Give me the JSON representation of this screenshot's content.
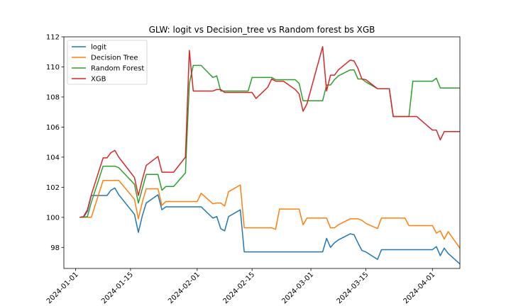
{
  "chart_data": {
    "type": "line",
    "title": "GLW: logit vs Decision_tree vs Random forest bs XGB",
    "xlabel": "",
    "ylabel": "",
    "ylim": [
      96.6,
      112.0
    ],
    "yticks": [
      98,
      100,
      102,
      104,
      106,
      108,
      110,
      112
    ],
    "xlim": [
      "2023-12-29",
      "2024-04-08"
    ],
    "xticks": [
      "2024-01-01",
      "2024-01-15",
      "2024-02-01",
      "2024-02-15",
      "2024-03-01",
      "2024-03-15",
      "2024-04-01"
    ],
    "grid": false,
    "legend_position": "top-left",
    "series": [
      {
        "name": "logit",
        "color": "#1f77b4",
        "points": [
          [
            "2024-01-02",
            100.0
          ],
          [
            "2024-01-03",
            100.0
          ],
          [
            "2024-01-04",
            100.4
          ],
          [
            "2024-01-05",
            101.45
          ],
          [
            "2024-01-08",
            101.45
          ],
          [
            "2024-01-09",
            101.45
          ],
          [
            "2024-01-10",
            101.8
          ],
          [
            "2024-01-11",
            101.95
          ],
          [
            "2024-01-12",
            101.5
          ],
          [
            "2024-01-16",
            100.2
          ],
          [
            "2024-01-17",
            99.0
          ],
          [
            "2024-01-18",
            100.1
          ],
          [
            "2024-01-19",
            100.95
          ],
          [
            "2024-01-22",
            101.5
          ],
          [
            "2024-01-23",
            100.5
          ],
          [
            "2024-01-24",
            100.7
          ],
          [
            "2024-01-25",
            100.7
          ],
          [
            "2024-01-26",
            100.7
          ],
          [
            "2024-01-29",
            100.7
          ],
          [
            "2024-01-30",
            100.7
          ],
          [
            "2024-01-31",
            100.7
          ],
          [
            "2024-02-01",
            100.7
          ],
          [
            "2024-02-02",
            100.7
          ],
          [
            "2024-02-05",
            99.95
          ],
          [
            "2024-02-06",
            100.05
          ],
          [
            "2024-02-07",
            99.25
          ],
          [
            "2024-02-08",
            99.1
          ],
          [
            "2024-02-09",
            100.05
          ],
          [
            "2024-02-12",
            100.5
          ],
          [
            "2024-02-13",
            97.7
          ],
          [
            "2024-02-14",
            97.7
          ],
          [
            "2024-02-15",
            97.7
          ],
          [
            "2024-02-16",
            97.7
          ],
          [
            "2024-03-01",
            97.7
          ],
          [
            "2024-03-04",
            97.7
          ],
          [
            "2024-03-05",
            98.6
          ],
          [
            "2024-03-06",
            98.0
          ],
          [
            "2024-03-07",
            98.3
          ],
          [
            "2024-03-08",
            98.5
          ],
          [
            "2024-03-11",
            98.9
          ],
          [
            "2024-03-12",
            98.85
          ],
          [
            "2024-03-13",
            98.3
          ],
          [
            "2024-03-14",
            97.8
          ],
          [
            "2024-03-15",
            97.7
          ],
          [
            "2024-03-18",
            97.2
          ],
          [
            "2024-03-19",
            97.85
          ],
          [
            "2024-03-20",
            97.85
          ],
          [
            "2024-03-21",
            97.85
          ],
          [
            "2024-04-01",
            97.85
          ],
          [
            "2024-04-02",
            98.05
          ],
          [
            "2024-04-03",
            97.45
          ],
          [
            "2024-04-04",
            97.95
          ],
          [
            "2024-04-05",
            97.6
          ],
          [
            "2024-04-08",
            96.9
          ]
        ]
      },
      {
        "name": "Decision Tree",
        "color": "#ff7f0e",
        "points": [
          [
            "2024-01-02",
            100.0
          ],
          [
            "2024-01-03",
            100.0
          ],
          [
            "2024-01-04",
            100.0
          ],
          [
            "2024-01-05",
            100.0
          ],
          [
            "2024-01-08",
            102.45
          ],
          [
            "2024-01-09",
            102.45
          ],
          [
            "2024-01-10",
            102.45
          ],
          [
            "2024-01-11",
            102.45
          ],
          [
            "2024-01-12",
            102.45
          ],
          [
            "2024-01-16",
            101.2
          ],
          [
            "2024-01-17",
            99.9
          ],
          [
            "2024-01-18",
            101.0
          ],
          [
            "2024-01-19",
            101.9
          ],
          [
            "2024-01-22",
            101.9
          ],
          [
            "2024-01-23",
            100.8
          ],
          [
            "2024-01-24",
            101.05
          ],
          [
            "2024-01-25",
            101.05
          ],
          [
            "2024-01-26",
            101.05
          ],
          [
            "2024-01-29",
            101.05
          ],
          [
            "2024-01-30",
            101.05
          ],
          [
            "2024-01-31",
            101.05
          ],
          [
            "2024-02-01",
            101.05
          ],
          [
            "2024-02-02",
            101.6
          ],
          [
            "2024-02-05",
            100.9
          ],
          [
            "2024-02-06",
            100.95
          ],
          [
            "2024-02-07",
            100.95
          ],
          [
            "2024-02-08",
            100.75
          ],
          [
            "2024-02-09",
            101.7
          ],
          [
            "2024-02-12",
            102.15
          ],
          [
            "2024-02-13",
            99.3
          ],
          [
            "2024-02-14",
            99.3
          ],
          [
            "2024-02-15",
            99.3
          ],
          [
            "2024-02-16",
            99.3
          ],
          [
            "2024-02-19",
            99.3
          ],
          [
            "2024-02-20",
            99.3
          ],
          [
            "2024-02-21",
            99.2
          ],
          [
            "2024-02-22",
            100.55
          ],
          [
            "2024-02-23",
            100.55
          ],
          [
            "2024-02-26",
            100.55
          ],
          [
            "2024-02-27",
            100.55
          ],
          [
            "2024-02-28",
            99.5
          ],
          [
            "2024-02-29",
            99.95
          ],
          [
            "2024-03-01",
            99.95
          ],
          [
            "2024-03-04",
            99.95
          ],
          [
            "2024-03-05",
            99.95
          ],
          [
            "2024-03-06",
            99.3
          ],
          [
            "2024-03-07",
            99.3
          ],
          [
            "2024-03-08",
            99.5
          ],
          [
            "2024-03-11",
            99.9
          ],
          [
            "2024-03-12",
            99.9
          ],
          [
            "2024-03-13",
            99.9
          ],
          [
            "2024-03-14",
            99.8
          ],
          [
            "2024-03-15",
            99.6
          ],
          [
            "2024-03-18",
            99.25
          ],
          [
            "2024-03-19",
            99.95
          ],
          [
            "2024-03-20",
            99.95
          ],
          [
            "2024-03-21",
            99.95
          ],
          [
            "2024-03-22",
            99.95
          ],
          [
            "2024-03-25",
            99.95
          ],
          [
            "2024-03-26",
            99.45
          ],
          [
            "2024-03-27",
            99.45
          ],
          [
            "2024-03-28",
            99.45
          ],
          [
            "2024-04-01",
            99.45
          ],
          [
            "2024-04-02",
            98.95
          ],
          [
            "2024-04-03",
            99.1
          ],
          [
            "2024-04-04",
            98.55
          ],
          [
            "2024-04-05",
            99.05
          ],
          [
            "2024-04-08",
            97.95
          ]
        ]
      },
      {
        "name": "Random Forest",
        "color": "#2ca02c",
        "points": [
          [
            "2024-01-02",
            100.0
          ],
          [
            "2024-01-03",
            100.0
          ],
          [
            "2024-01-04",
            100.05
          ],
          [
            "2024-01-05",
            101.0
          ],
          [
            "2024-01-08",
            103.4
          ],
          [
            "2024-01-09",
            103.4
          ],
          [
            "2024-01-10",
            103.4
          ],
          [
            "2024-01-11",
            103.4
          ],
          [
            "2024-01-12",
            103.3
          ],
          [
            "2024-01-16",
            102.2
          ],
          [
            "2024-01-17",
            100.95
          ],
          [
            "2024-01-18",
            101.9
          ],
          [
            "2024-01-19",
            102.85
          ],
          [
            "2024-01-22",
            102.85
          ],
          [
            "2024-01-23",
            101.8
          ],
          [
            "2024-01-24",
            102.05
          ],
          [
            "2024-01-25",
            102.05
          ],
          [
            "2024-01-26",
            102.05
          ],
          [
            "2024-01-29",
            102.95
          ],
          [
            "2024-01-30",
            108.9
          ],
          [
            "2024-01-31",
            110.1
          ],
          [
            "2024-02-01",
            110.1
          ],
          [
            "2024-02-02",
            110.1
          ],
          [
            "2024-02-05",
            109.3
          ],
          [
            "2024-02-06",
            109.4
          ],
          [
            "2024-02-07",
            108.4
          ],
          [
            "2024-02-08",
            108.4
          ],
          [
            "2024-02-09",
            108.4
          ],
          [
            "2024-02-12",
            108.4
          ],
          [
            "2024-02-13",
            108.4
          ],
          [
            "2024-02-14",
            108.4
          ],
          [
            "2024-02-15",
            109.3
          ],
          [
            "2024-02-16",
            109.3
          ],
          [
            "2024-02-19",
            109.3
          ],
          [
            "2024-02-20",
            109.3
          ],
          [
            "2024-02-21",
            109.15
          ],
          [
            "2024-02-22",
            109.15
          ],
          [
            "2024-02-23",
            109.15
          ],
          [
            "2024-02-26",
            109.15
          ],
          [
            "2024-02-27",
            108.9
          ],
          [
            "2024-02-28",
            107.75
          ],
          [
            "2024-02-29",
            107.75
          ],
          [
            "2024-03-01",
            107.75
          ],
          [
            "2024-03-04",
            107.75
          ],
          [
            "2024-03-05",
            108.8
          ],
          [
            "2024-03-06",
            108.8
          ],
          [
            "2024-03-07",
            109.15
          ],
          [
            "2024-03-08",
            109.4
          ],
          [
            "2024-03-11",
            109.8
          ],
          [
            "2024-03-12",
            109.8
          ],
          [
            "2024-03-13",
            109.2
          ],
          [
            "2024-03-14",
            109.2
          ],
          [
            "2024-03-15",
            109.0
          ],
          [
            "2024-03-18",
            108.55
          ],
          [
            "2024-03-19",
            108.55
          ],
          [
            "2024-03-20",
            108.55
          ],
          [
            "2024-03-21",
            108.55
          ],
          [
            "2024-03-22",
            106.7
          ],
          [
            "2024-03-25",
            106.7
          ],
          [
            "2024-03-26",
            106.7
          ],
          [
            "2024-03-27",
            109.05
          ],
          [
            "2024-03-28",
            109.05
          ],
          [
            "2024-04-01",
            109.05
          ],
          [
            "2024-04-02",
            109.25
          ],
          [
            "2024-04-03",
            108.6
          ],
          [
            "2024-04-04",
            108.6
          ],
          [
            "2024-04-05",
            108.6
          ],
          [
            "2024-04-08",
            108.6
          ]
        ]
      },
      {
        "name": "XGB",
        "color": "#d62728",
        "points": [
          [
            "2024-01-02",
            100.0
          ],
          [
            "2024-01-03",
            100.05
          ],
          [
            "2024-01-04",
            100.5
          ],
          [
            "2024-01-05",
            101.5
          ],
          [
            "2024-01-08",
            103.95
          ],
          [
            "2024-01-09",
            103.95
          ],
          [
            "2024-01-10",
            104.3
          ],
          [
            "2024-01-11",
            104.45
          ],
          [
            "2024-01-12",
            104.0
          ],
          [
            "2024-01-16",
            102.65
          ],
          [
            "2024-01-17",
            101.45
          ],
          [
            "2024-01-18",
            102.5
          ],
          [
            "2024-01-19",
            103.45
          ],
          [
            "2024-01-22",
            104.05
          ],
          [
            "2024-01-23",
            103.0
          ],
          [
            "2024-01-24",
            103.0
          ],
          [
            "2024-01-25",
            103.0
          ],
          [
            "2024-01-26",
            103.0
          ],
          [
            "2024-01-29",
            104.0
          ],
          [
            "2024-01-30",
            111.1
          ],
          [
            "2024-01-31",
            108.4
          ],
          [
            "2024-02-01",
            108.4
          ],
          [
            "2024-02-02",
            108.4
          ],
          [
            "2024-02-05",
            108.4
          ],
          [
            "2024-02-06",
            108.5
          ],
          [
            "2024-02-07",
            108.5
          ],
          [
            "2024-02-08",
            108.3
          ],
          [
            "2024-02-09",
            108.3
          ],
          [
            "2024-02-12",
            108.3
          ],
          [
            "2024-02-13",
            108.3
          ],
          [
            "2024-02-14",
            108.3
          ],
          [
            "2024-02-15",
            108.3
          ],
          [
            "2024-02-16",
            107.9
          ],
          [
            "2024-02-19",
            108.65
          ],
          [
            "2024-02-20",
            109.2
          ],
          [
            "2024-02-21",
            109.05
          ],
          [
            "2024-02-22",
            109.05
          ],
          [
            "2024-02-23",
            109.05
          ],
          [
            "2024-02-26",
            108.5
          ],
          [
            "2024-02-27",
            108.2
          ],
          [
            "2024-02-28",
            107.05
          ],
          [
            "2024-02-29",
            107.55
          ],
          [
            "2024-03-01",
            108.5
          ],
          [
            "2024-03-04",
            111.35
          ],
          [
            "2024-03-05",
            108.4
          ],
          [
            "2024-03-06",
            109.45
          ],
          [
            "2024-03-07",
            109.45
          ],
          [
            "2024-03-08",
            109.8
          ],
          [
            "2024-03-11",
            110.45
          ],
          [
            "2024-03-12",
            110.4
          ],
          [
            "2024-03-13",
            109.9
          ],
          [
            "2024-03-14",
            109.2
          ],
          [
            "2024-03-15",
            109.15
          ],
          [
            "2024-03-18",
            108.55
          ],
          [
            "2024-03-19",
            108.55
          ],
          [
            "2024-03-20",
            108.55
          ],
          [
            "2024-03-21",
            108.55
          ],
          [
            "2024-03-22",
            106.7
          ],
          [
            "2024-03-25",
            106.7
          ],
          [
            "2024-03-26",
            106.7
          ],
          [
            "2024-03-27",
            106.7
          ],
          [
            "2024-03-28",
            106.7
          ],
          [
            "2024-04-01",
            105.8
          ],
          [
            "2024-04-02",
            105.8
          ],
          [
            "2024-04-03",
            105.15
          ],
          [
            "2024-04-04",
            105.7
          ],
          [
            "2024-04-05",
            105.7
          ],
          [
            "2024-04-08",
            105.7
          ]
        ]
      }
    ]
  }
}
